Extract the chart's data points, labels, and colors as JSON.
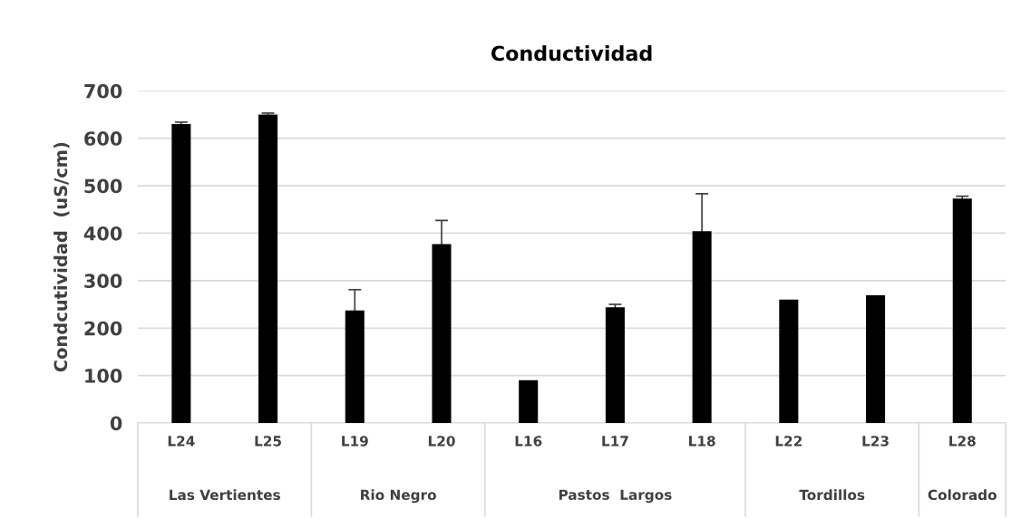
{
  "chart_data": {
    "type": "bar",
    "title": "Conductividad",
    "ylabel": "Condcutividad  (uS/cm)",
    "categories": [
      "L24",
      "L25",
      "L19",
      "L20",
      "L16",
      "L17",
      "L18",
      "L22",
      "L23",
      "L28"
    ],
    "values": [
      630,
      650,
      237,
      377,
      90,
      244,
      404,
      260,
      269,
      473
    ],
    "errors": [
      4,
      3,
      44,
      50,
      null,
      6,
      79,
      null,
      null,
      5
    ],
    "color": "#000000",
    "ylim": [
      0,
      700
    ],
    "yticks": [
      0,
      100,
      200,
      300,
      400,
      500,
      600,
      700
    ],
    "grid": "y",
    "annotations": [
      "Las Vertientes",
      "Rio Negro",
      "Pastos  Largos",
      "Tordillos",
      "Colorado"
    ]
  }
}
